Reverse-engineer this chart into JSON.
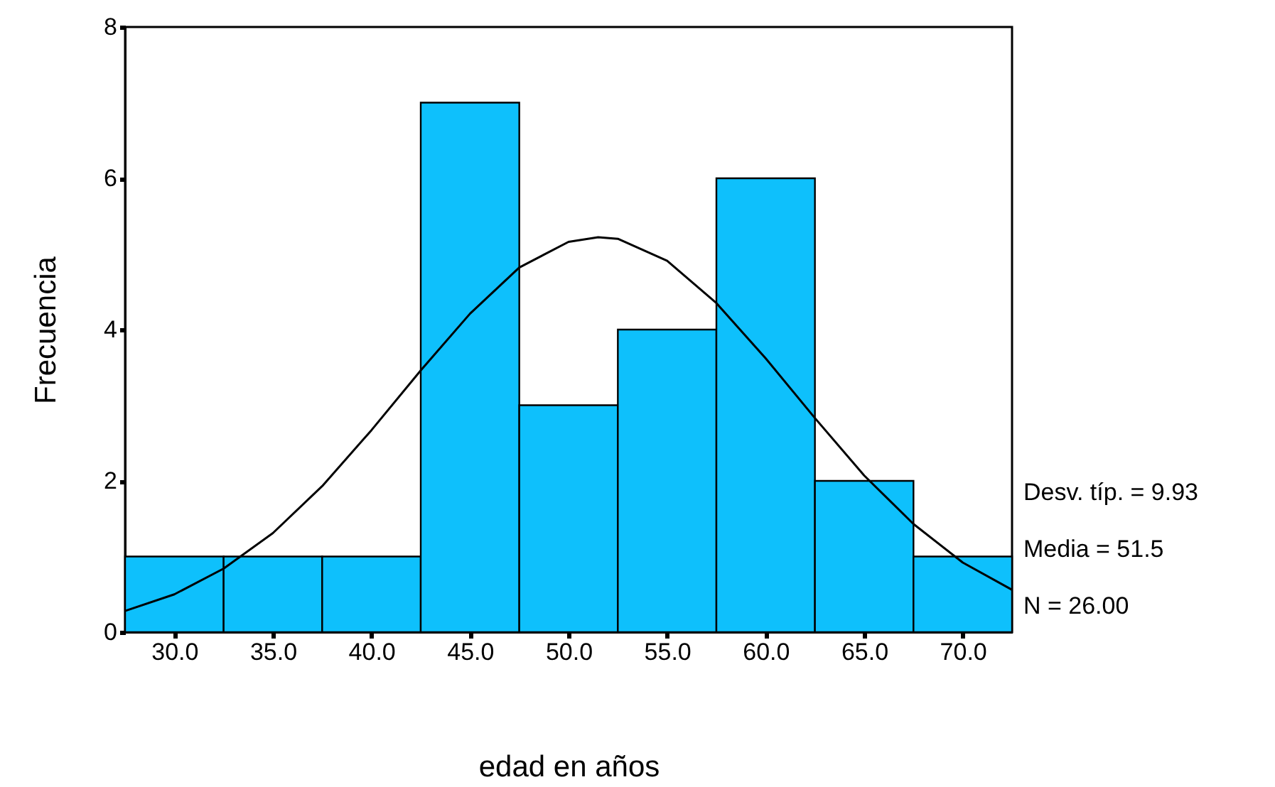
{
  "chart_data": {
    "type": "histogram",
    "xlabel": "edad en años",
    "ylabel": "Frecuencia",
    "bins": [
      27.5,
      32.5,
      37.5,
      42.5,
      47.5,
      52.5,
      57.5,
      62.5,
      67.5,
      72.5
    ],
    "values": [
      1,
      1,
      1,
      7,
      3,
      4,
      6,
      2,
      1
    ],
    "color": "#0ec0fc",
    "series": [
      {
        "type": "line",
        "color": "#000000",
        "x": [
          27.5,
          30,
          32.5,
          35,
          37.5,
          40,
          42.5,
          45,
          47.5,
          50,
          51.5,
          52.5,
          55,
          57.5,
          60,
          62.5,
          65,
          67.5,
          70,
          72.5
        ],
        "values": [
          0.28,
          0.5,
          0.84,
          1.31,
          1.93,
          2.67,
          3.46,
          4.21,
          4.82,
          5.16,
          5.22,
          5.2,
          4.91,
          4.35,
          3.62,
          2.83,
          2.07,
          1.43,
          0.92,
          0.56
        ]
      }
    ],
    "xlim": [
      27.5,
      72.5
    ],
    "xticks": [
      {
        "value": 30,
        "label": "30.0"
      },
      {
        "value": 35,
        "label": "35.0"
      },
      {
        "value": 40,
        "label": "40.0"
      },
      {
        "value": 45,
        "label": "45.0"
      },
      {
        "value": 50,
        "label": "50.0"
      },
      {
        "value": 55,
        "label": "55.0"
      },
      {
        "value": 60,
        "label": "60.0"
      },
      {
        "value": 65,
        "label": "65.0"
      },
      {
        "value": 70,
        "label": "70.0"
      }
    ],
    "ylim": [
      0,
      8
    ],
    "yticks": [
      0,
      2,
      4,
      6,
      8
    ],
    "grid": false,
    "marker": "none",
    "line_style": "solid",
    "annotations": [
      "Desv. típ. = 9.93",
      "Media = 51.5",
      "N = 26.00"
    ]
  }
}
